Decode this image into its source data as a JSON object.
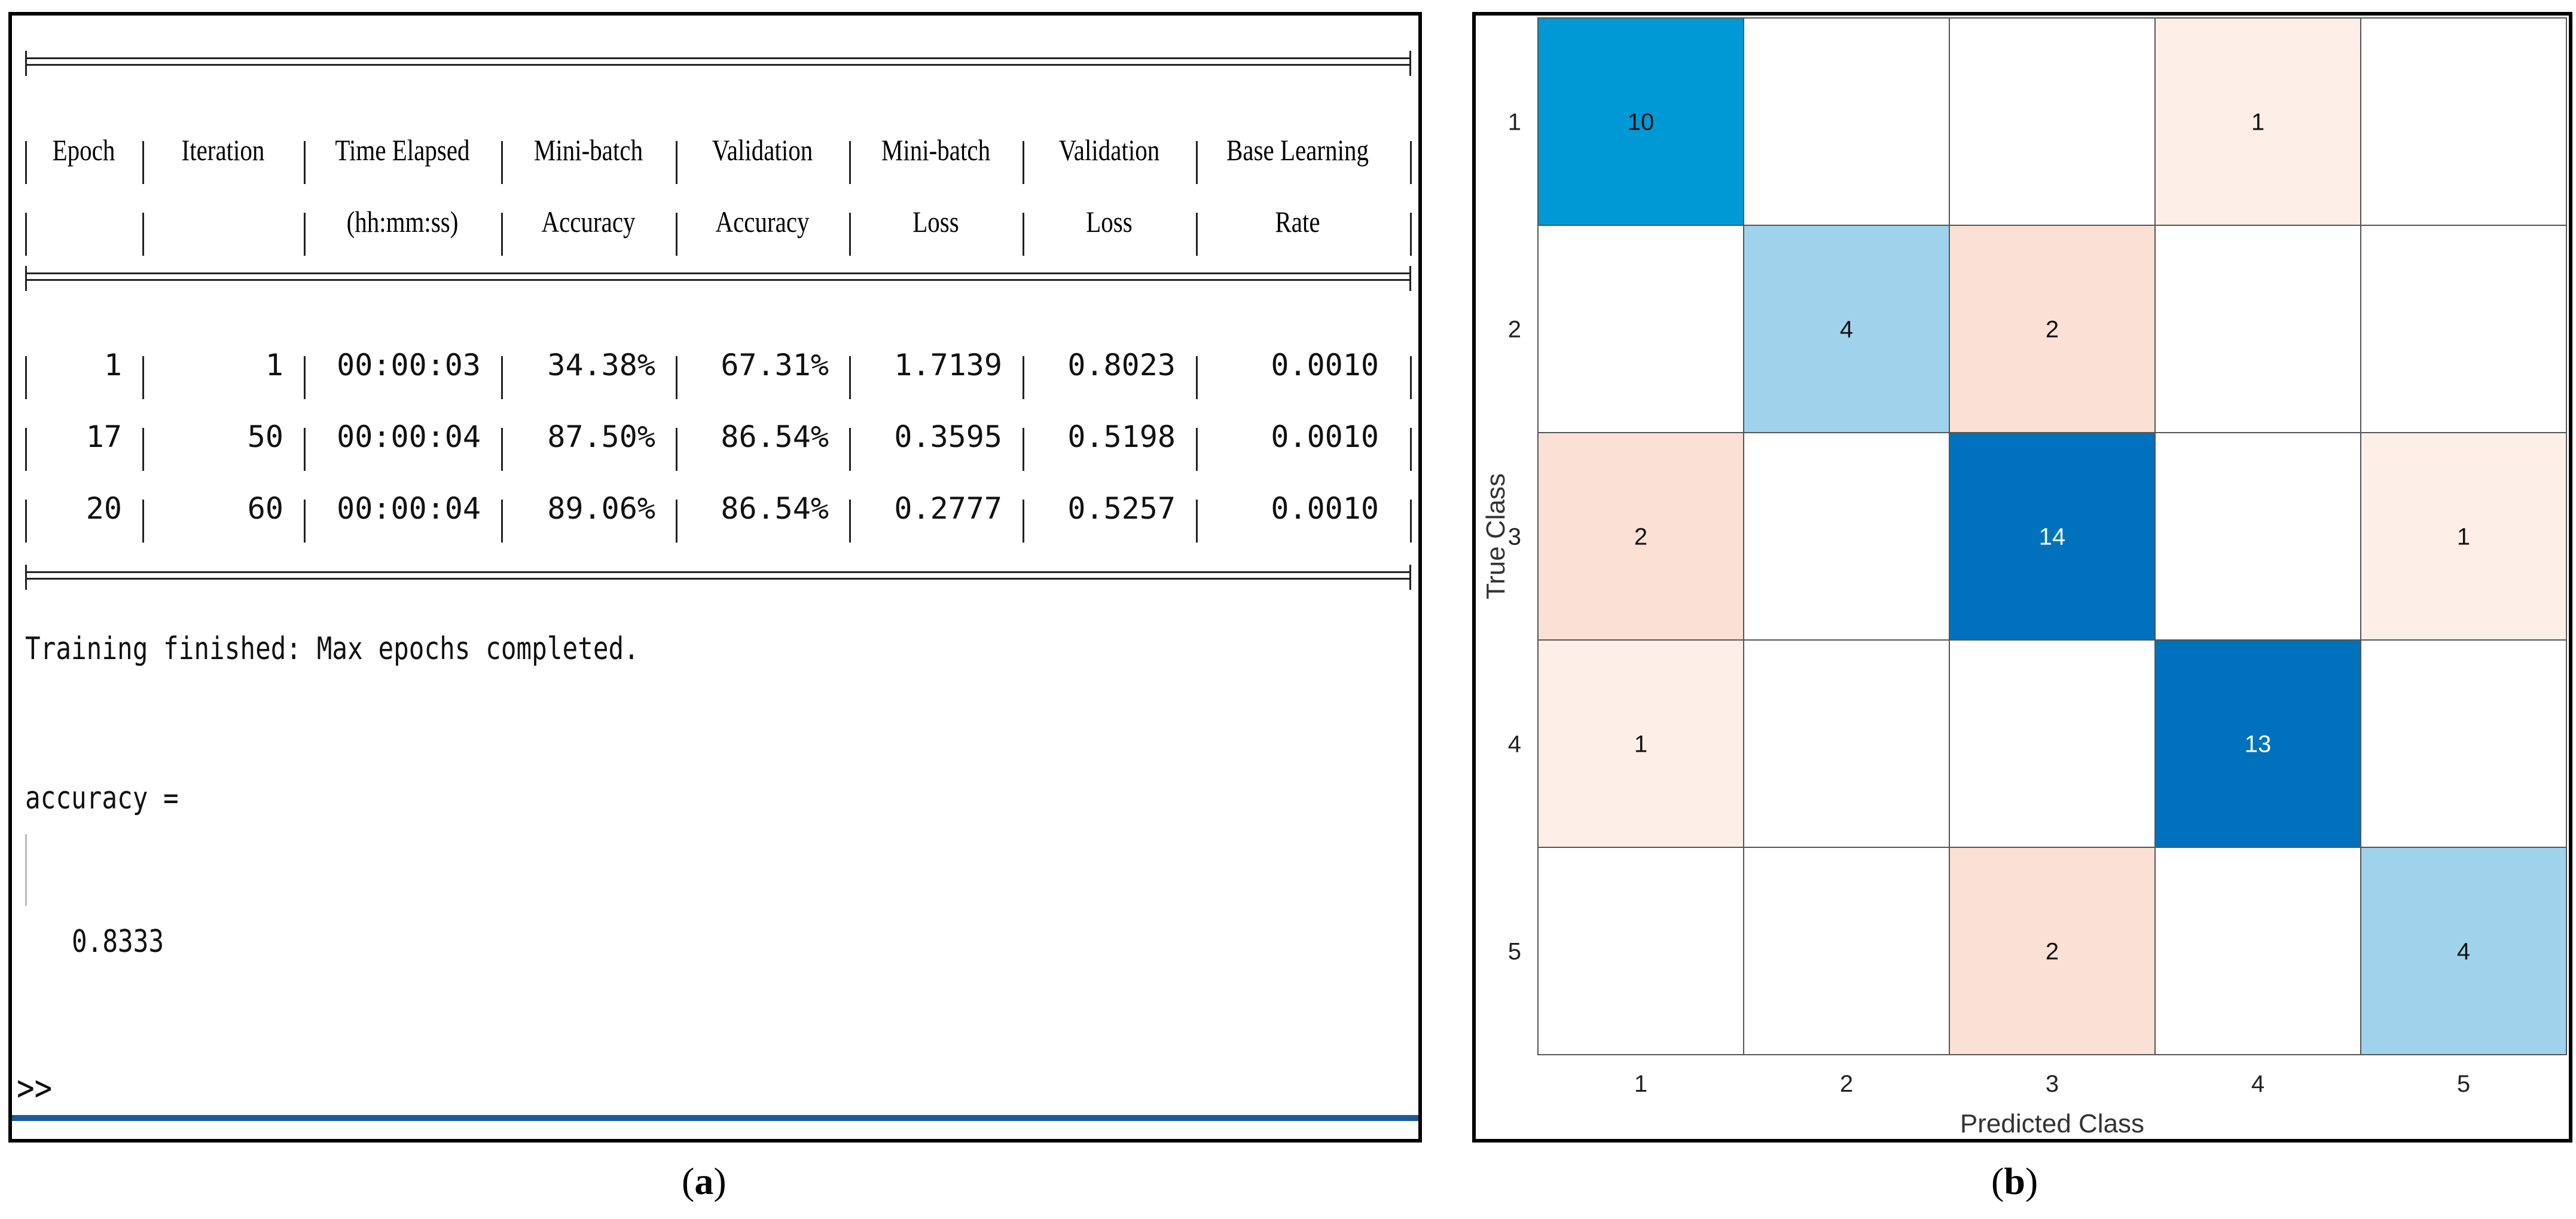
{
  "panel_a": {
    "caption_letter": "a",
    "table": {
      "header_line1": [
        "Epoch",
        "Iteration",
        "Time Elapsed",
        "Mini-batch",
        "Validation",
        "Mini-batch",
        "Validation",
        "Base Learning"
      ],
      "header_line2": [
        "",
        "",
        "(hh:mm:ss)",
        "Accuracy",
        "Accuracy",
        "Loss",
        "Loss",
        "Rate"
      ],
      "rows": [
        [
          "1",
          "1",
          "00:00:03",
          "34.38%",
          "67.31%",
          "1.7139",
          "0.8023",
          "0.0010"
        ],
        [
          "17",
          "50",
          "00:00:04",
          "87.50%",
          "86.54%",
          "0.3595",
          "0.5198",
          "0.0010"
        ],
        [
          "20",
          "60",
          "00:00:04",
          "89.06%",
          "86.54%",
          "0.2777",
          "0.5257",
          "0.0010"
        ]
      ]
    },
    "training_message": "Training finished: Max epochs completed.",
    "accuracy_label": "accuracy =",
    "accuracy_value": "0.8333",
    "prompt": ">>"
  },
  "panel_b": {
    "caption_letter": "b",
    "chart_data": {
      "type": "heatmap",
      "title": "",
      "xlabel": "Predicted Class",
      "ylabel": "True Class",
      "x_categories": [
        "1",
        "2",
        "3",
        "4",
        "5"
      ],
      "y_categories": [
        "1",
        "2",
        "3",
        "4",
        "5"
      ],
      "matrix": [
        [
          10,
          null,
          null,
          1,
          null
        ],
        [
          null,
          4,
          2,
          null,
          null
        ],
        [
          2,
          null,
          14,
          null,
          1
        ],
        [
          1,
          null,
          null,
          13,
          null
        ],
        [
          null,
          null,
          2,
          null,
          4
        ]
      ],
      "colors": {
        "diag_high": "#0072bd",
        "diag_mid": "#0099d6",
        "diag_low": "#9fd3ec",
        "off_2": "#fbe0d6",
        "off_1": "#fdeee8",
        "grid": "#555555"
      }
    }
  }
}
